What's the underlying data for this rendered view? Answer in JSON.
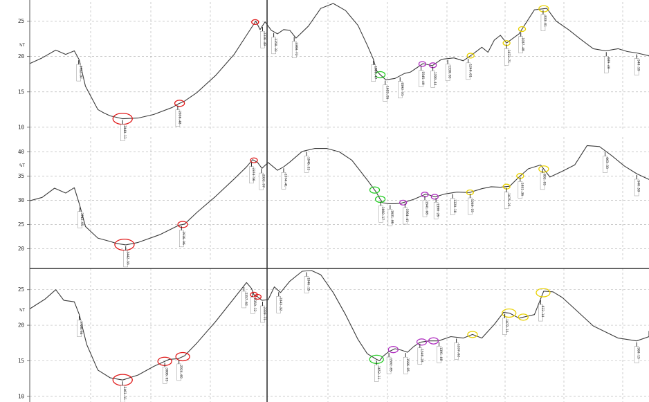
{
  "chart_data": [
    {
      "type": "line",
      "panel": "top",
      "ylabel": "%T",
      "yticks": [
        10,
        15,
        20,
        25
      ],
      "ylim": [
        9.5,
        27.3
      ],
      "xlim": [
        0,
        1000
      ],
      "grid": true,
      "series": [
        {
          "x": [
            0,
            20,
            42,
            58,
            72,
            80,
            90,
            110,
            120,
            130,
            150,
            175,
            200,
            230,
            240,
            250,
            270,
            300,
            330,
            350,
            365,
            372,
            380,
            390,
            400,
            410,
            420,
            430,
            450,
            470,
            490,
            510,
            530,
            545,
            555,
            560,
            565,
            575,
            590,
            605,
            615,
            625,
            635,
            650,
            665,
            685,
            700,
            715,
            730,
            740,
            750,
            760,
            770,
            790,
            815,
            835,
            850,
            870,
            890,
            910,
            930,
            950,
            965,
            980,
            1000
          ],
          "y": [
            19.0,
            19.8,
            20.9,
            20.3,
            20.8,
            19.5,
            15.8,
            12.5,
            12.0,
            11.6,
            11.2,
            11.3,
            11.8,
            12.8,
            13.3,
            13.7,
            14.9,
            17.3,
            20.3,
            23.0,
            25.0,
            23.8,
            24.9,
            23.7,
            23.2,
            23.8,
            23.7,
            22.6,
            24.3,
            26.8,
            27.5,
            26.5,
            24.4,
            21.6,
            19.6,
            18.0,
            17.5,
            16.7,
            16.9,
            17.6,
            17.8,
            18.4,
            19.0,
            18.7,
            19.6,
            19.8,
            19.4,
            20.3,
            21.3,
            20.6,
            22.3,
            23.0,
            21.9,
            23.2,
            26.6,
            26.8,
            25.0,
            23.8,
            22.4,
            21.1,
            20.8,
            21.1,
            20.7,
            20.5,
            20.1
          ]
        }
      ],
      "peaks": [
        {
          "x": 79,
          "label": "3722.97"
        },
        {
          "x": 150,
          "label": "3440.11"
        },
        {
          "x": 239,
          "label": "2936.48"
        },
        {
          "x": 376,
          "label": "2336.49"
        },
        {
          "x": 394,
          "label": "2358.33"
        },
        {
          "x": 427,
          "label": "2360.72"
        },
        {
          "x": 555,
          "label": "1680.47"
        },
        {
          "x": 574,
          "label": "1653.95"
        },
        {
          "x": 598,
          "label": "1592.31"
        },
        {
          "x": 632,
          "label": "1545.40"
        },
        {
          "x": 651,
          "label": "1390.44"
        },
        {
          "x": 675,
          "label": "1330.83"
        },
        {
          "x": 708,
          "label": "1240.01"
        },
        {
          "x": 770,
          "label": "1073.71"
        },
        {
          "x": 793,
          "label": "1037.40"
        },
        {
          "x": 829,
          "label": "833.81"
        },
        {
          "x": 931,
          "label": "689.40"
        },
        {
          "x": 980,
          "label": "540.59"
        },
        {
          "x": 1030,
          "label": "447.52"
        },
        {
          "x": 1042,
          "label": "391.79"
        }
      ],
      "circles": [
        {
          "x": 150,
          "color": "#e01818",
          "size": "large"
        },
        {
          "x": 242,
          "color": "#e01818",
          "size": "small"
        },
        {
          "x": 364,
          "color": "#e01818",
          "size": "tiny"
        },
        {
          "x": 566,
          "color": "#22cc22",
          "size": "small"
        },
        {
          "x": 634,
          "color": "#b030c0",
          "size": "tiny"
        },
        {
          "x": 651,
          "color": "#b030c0",
          "size": "tiny"
        },
        {
          "x": 712,
          "color": "#e8d000",
          "size": "tiny"
        },
        {
          "x": 770,
          "color": "#e8d000",
          "size": "tiny"
        },
        {
          "x": 795,
          "color": "#e8d000",
          "size": "tiny"
        },
        {
          "x": 830,
          "color": "#e8d000",
          "size": "small"
        }
      ]
    },
    {
      "type": "line",
      "panel": "middle",
      "ylabel": "%T",
      "yticks": [
        20,
        25,
        30,
        35,
        40
      ],
      "ylim": [
        17.5,
        42.5
      ],
      "xlim": [
        0,
        1000
      ],
      "grid": true,
      "series": [
        {
          "x": [
            0,
            20,
            40,
            58,
            72,
            80,
            90,
            110,
            130,
            140,
            155,
            175,
            210,
            240,
            250,
            270,
            300,
            330,
            350,
            360,
            368,
            375,
            385,
            400,
            410,
            420,
            440,
            460,
            480,
            500,
            520,
            545,
            560,
            565,
            570,
            580,
            590,
            600,
            620,
            640,
            655,
            670,
            690,
            710,
            730,
            745,
            760,
            775,
            790,
            805,
            825,
            840,
            860,
            880,
            900,
            920,
            940,
            960,
            980,
            1000
          ],
          "y": [
            29.9,
            30.6,
            32.5,
            31.5,
            32.6,
            29.3,
            24.6,
            22.2,
            21.5,
            21.1,
            20.8,
            21.3,
            22.9,
            24.8,
            25.1,
            27.5,
            30.8,
            34.4,
            36.9,
            38.4,
            37.8,
            36.6,
            37.8,
            36.2,
            36.9,
            37.9,
            40.1,
            40.7,
            40.7,
            40.0,
            38.3,
            34.2,
            31.6,
            30.4,
            29.5,
            29.3,
            29.3,
            29.4,
            30.2,
            31.3,
            30.7,
            31.3,
            31.7,
            31.6,
            32.4,
            32.8,
            32.7,
            32.9,
            34.8,
            36.5,
            37.3,
            34.8,
            36.0,
            37.3,
            41.3,
            41.1,
            39.2,
            37.1,
            35.5,
            34.3
          ]
        }
      ],
      "peaks": [
        {
          "x": 81,
          "label": "3742.95"
        },
        {
          "x": 155,
          "label": "3442.55"
        },
        {
          "x": 245,
          "label": "2916.96"
        },
        {
          "x": 358,
          "label": "2374.56"
        },
        {
          "x": 374,
          "label": "2332.97"
        },
        {
          "x": 410,
          "label": "2374.41"
        },
        {
          "x": 447,
          "label": "1946.32"
        },
        {
          "x": 567,
          "label": "1660.17"
        },
        {
          "x": 582,
          "label": "1631.06"
        },
        {
          "x": 606,
          "label": "1564.41"
        },
        {
          "x": 638,
          "label": "1541.08"
        },
        {
          "x": 656,
          "label": "1390.26"
        },
        {
          "x": 683,
          "label": "1320.18"
        },
        {
          "x": 711,
          "label": "1240.15"
        },
        {
          "x": 770,
          "label": "1075.25"
        },
        {
          "x": 792,
          "label": "1051.36"
        },
        {
          "x": 828,
          "label": "832.95"
        },
        {
          "x": 929,
          "label": "663.33"
        },
        {
          "x": 980,
          "label": "540.50"
        },
        {
          "x": 1028,
          "label": "447.38"
        },
        {
          "x": 1040,
          "label": "390.27"
        }
      ],
      "circles": [
        {
          "x": 153,
          "color": "#e01818",
          "size": "large"
        },
        {
          "x": 247,
          "color": "#e01818",
          "size": "small"
        },
        {
          "x": 362,
          "color": "#e01818",
          "size": "tiny"
        },
        {
          "x": 557,
          "color": "#22cc22",
          "size": "small"
        },
        {
          "x": 566,
          "color": "#22cc22",
          "size": "small"
        },
        {
          "x": 603,
          "color": "#b030c0",
          "size": "tiny"
        },
        {
          "x": 638,
          "color": "#b030c0",
          "size": "tiny"
        },
        {
          "x": 654,
          "color": "#b030c0",
          "size": "tiny"
        },
        {
          "x": 711,
          "color": "#e8d000",
          "size": "tiny"
        },
        {
          "x": 770,
          "color": "#e8d000",
          "size": "tiny"
        },
        {
          "x": 792,
          "color": "#e8d000",
          "size": "tiny"
        },
        {
          "x": 830,
          "color": "#e8d000",
          "size": "small"
        }
      ]
    },
    {
      "type": "line",
      "panel": "bottom",
      "ylabel": "%T",
      "yticks": [
        10,
        15,
        20,
        25
      ],
      "ylim": [
        9.2,
        27.6
      ],
      "xlim": [
        0,
        1000
      ],
      "grid": true,
      "series": [
        {
          "x": [
            0,
            25,
            42,
            55,
            72,
            80,
            92,
            110,
            130,
            150,
            175,
            200,
            225,
            240,
            250,
            270,
            300,
            330,
            350,
            358,
            362,
            368,
            375,
            385,
            395,
            405,
            420,
            440,
            455,
            470,
            490,
            510,
            530,
            545,
            560,
            565,
            570,
            580,
            590,
            600,
            610,
            620,
            630,
            645,
            660,
            680,
            700,
            715,
            730,
            750,
            765,
            775,
            790,
            815,
            830,
            845,
            860,
            880,
            910,
            950,
            980,
            1000,
            1020,
            1040
          ],
          "y": [
            22.3,
            23.7,
            25.0,
            23.5,
            23.3,
            21.5,
            17.3,
            13.7,
            12.6,
            12.3,
            13.0,
            14.2,
            15.2,
            15.3,
            15.7,
            17.5,
            20.5,
            23.8,
            26.0,
            25.2,
            24.3,
            24.0,
            23.5,
            23.6,
            25.4,
            24.6,
            26.2,
            27.6,
            27.7,
            27.1,
            24.6,
            21.5,
            18.0,
            16.0,
            15.2,
            15.0,
            15.6,
            16.3,
            16.7,
            16.5,
            16.2,
            17.0,
            17.6,
            17.8,
            17.8,
            18.4,
            18.2,
            18.7,
            18.2,
            20.1,
            21.8,
            21.7,
            21.0,
            21.5,
            24.8,
            24.7,
            23.9,
            22.3,
            19.9,
            18.2,
            17.8,
            18.4,
            18.9,
            19.2
          ]
        }
      ],
      "peaks": [
        {
          "x": 80,
          "label": "3726.84"
        },
        {
          "x": 150,
          "label": "3461.11"
        },
        {
          "x": 218,
          "label": "3006.95"
        },
        {
          "x": 241,
          "label": "2924.69"
        },
        {
          "x": 346,
          "label": "2357.63"
        },
        {
          "x": 360,
          "label": "2359.12"
        },
        {
          "x": 376,
          "label": "2330.71"
        },
        {
          "x": 402,
          "label": "2343.32"
        },
        {
          "x": 447,
          "label": "1946.15"
        },
        {
          "x": 560,
          "label": "1653.11"
        },
        {
          "x": 580,
          "label": "1592.85"
        },
        {
          "x": 607,
          "label": "1566.95"
        },
        {
          "x": 630,
          "label": "1540.28"
        },
        {
          "x": 661,
          "label": "1391.88"
        },
        {
          "x": 689,
          "label": "1337.62"
        },
        {
          "x": 767,
          "label": "1072.15"
        },
        {
          "x": 825,
          "label": "833.14"
        },
        {
          "x": 980,
          "label": "560.15"
        },
        {
          "x": 1018,
          "label": "447.82"
        },
        {
          "x": 1032,
          "label": "391.15"
        }
      ],
      "circles": [
        {
          "x": 150,
          "color": "#e01818",
          "size": "large"
        },
        {
          "x": 218,
          "color": "#e01818",
          "size": "medium"
        },
        {
          "x": 247,
          "color": "#e01818",
          "size": "medium"
        },
        {
          "x": 362,
          "color": "#e01818",
          "size": "tiny"
        },
        {
          "x": 368,
          "color": "#e01818",
          "size": "tiny"
        },
        {
          "x": 560,
          "color": "#22cc22",
          "size": "medium"
        },
        {
          "x": 587,
          "color": "#b030c0",
          "size": "small"
        },
        {
          "x": 633,
          "color": "#b030c0",
          "size": "small"
        },
        {
          "x": 652,
          "color": "#b030c0",
          "size": "small"
        },
        {
          "x": 715,
          "color": "#e8d000",
          "size": "small"
        },
        {
          "x": 774,
          "color": "#e8d000",
          "size": "medium"
        },
        {
          "x": 797,
          "color": "#e8d000",
          "size": "small"
        },
        {
          "x": 829,
          "color": "#e8d000",
          "size": "medium"
        }
      ]
    }
  ]
}
